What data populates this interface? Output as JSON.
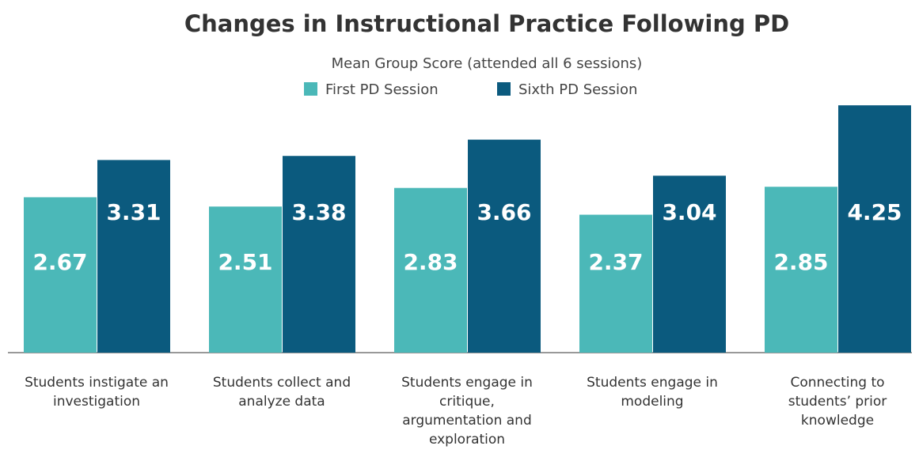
{
  "chart_data": {
    "type": "bar",
    "title": "Changes in Instructional Practice Following PD",
    "subtitle": "Mean Group Score (attended all 6 sessions)",
    "categories": [
      "Students instigate an investigation",
      "Students collect and analyze data",
      "Students engage in critique, argumentation and exploration",
      "Students engage in modeling",
      "Connecting to students’ prior knowledge"
    ],
    "series": [
      {
        "name": "First PD Session",
        "color": "#4bb8b8",
        "values": [
          2.67,
          2.51,
          2.83,
          2.37,
          2.85
        ]
      },
      {
        "name": "Sixth PD Session",
        "color": "#0b5a7e",
        "values": [
          3.31,
          3.38,
          3.66,
          3.04,
          4.25
        ]
      }
    ],
    "ylim": [
      0,
      5
    ]
  }
}
